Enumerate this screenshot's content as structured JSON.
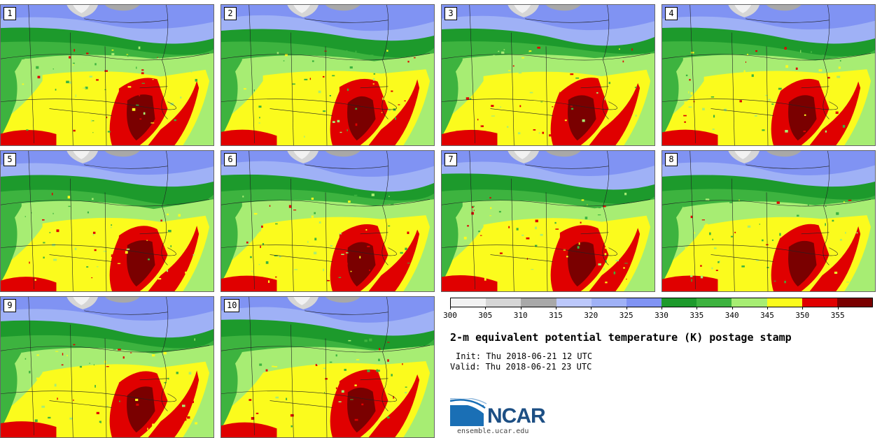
{
  "colors": {
    "c300": "#f2f2f2",
    "c305": "#d6d6d6",
    "c310": "#a8a8a8",
    "c315": "#bcc8fb",
    "c320": "#9fb1f6",
    "c325": "#8093f3",
    "c330": "#1d9a2c",
    "c335": "#3db33f",
    "c340": "#a7ed73",
    "c345": "#fbfb1d",
    "c350": "#e00000",
    "c355": "#7a0000"
  },
  "stamps": [
    {
      "label": "1"
    },
    {
      "label": "2"
    },
    {
      "label": "3"
    },
    {
      "label": "4"
    },
    {
      "label": "5"
    },
    {
      "label": "6"
    },
    {
      "label": "7"
    },
    {
      "label": "8"
    },
    {
      "label": "9"
    },
    {
      "label": "10"
    }
  ],
  "colorbar": {
    "ticks": [
      "300",
      "305",
      "310",
      "315",
      "320",
      "325",
      "330",
      "335",
      "340",
      "345",
      "350",
      "355"
    ]
  },
  "caption": {
    "title": "2-m equivalent potential temperature (K) postage stamp",
    "init": "Init: Thu 2018-06-21 12 UTC",
    "valid": "Valid: Thu 2018-06-21 23 UTC"
  },
  "logo": {
    "name": "NCAR",
    "url": "ensemble.ucar.edu"
  }
}
